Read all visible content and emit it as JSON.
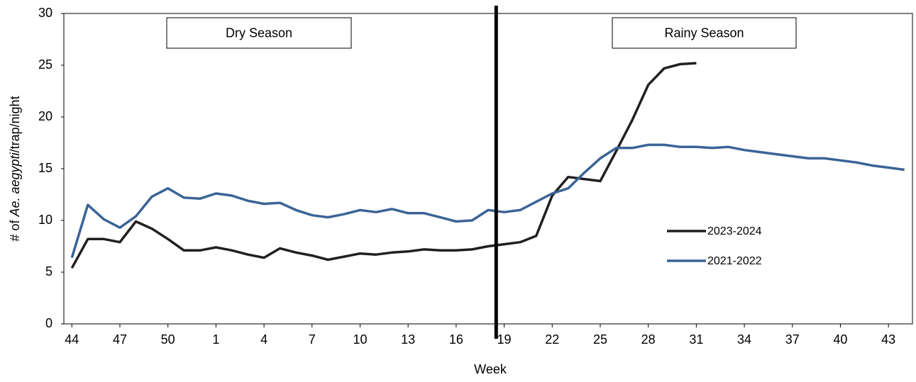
{
  "chart_data": {
    "type": "line",
    "xlabel": "Week",
    "ylabel_parts": [
      {
        "text": "# of "
      },
      {
        "text": "Ae. aegypti",
        "italic": true
      },
      {
        "text": "/trap/night"
      }
    ],
    "categories": [
      "44",
      null,
      null,
      "47",
      null,
      null,
      "50",
      null,
      null,
      "1",
      null,
      null,
      "4",
      null,
      null,
      "7",
      null,
      null,
      "10",
      null,
      null,
      "13",
      null,
      null,
      "16",
      null,
      null,
      "19",
      null,
      null,
      "22",
      null,
      null,
      "25",
      null,
      null,
      "28",
      null,
      null,
      "31",
      null,
      null,
      "34",
      null,
      null,
      "37",
      null,
      null,
      "40",
      null,
      null,
      "43",
      null
    ],
    "series": [
      {
        "name": "2023-2024",
        "color": "#231f20",
        "values": [
          5.4,
          8.2,
          8.2,
          7.9,
          9.9,
          9.2,
          8.2,
          7.1,
          7.1,
          7.4,
          7.1,
          6.7,
          6.4,
          7.3,
          6.9,
          6.6,
          6.2,
          6.5,
          6.8,
          6.7,
          6.9,
          7.0,
          7.2,
          7.1,
          7.1,
          7.2,
          7.5,
          7.7,
          7.9,
          8.5,
          12.4,
          14.2,
          14.0,
          13.8,
          16.7,
          19.7,
          23.1,
          24.7,
          25.1,
          25.2,
          null,
          null,
          null,
          null,
          null,
          null,
          null,
          null,
          null,
          null,
          null,
          null,
          null
        ]
      },
      {
        "name": "2021-2022",
        "color": "#3b6496",
        "values": [
          6.4,
          11.5,
          10.1,
          9.3,
          10.4,
          12.3,
          13.1,
          12.2,
          12.1,
          12.6,
          12.4,
          11.9,
          11.6,
          11.7,
          11.0,
          10.5,
          10.3,
          10.6,
          11.0,
          10.8,
          11.1,
          10.7,
          10.7,
          10.3,
          9.9,
          10.0,
          11.0,
          10.8,
          11.0,
          11.8,
          12.6,
          13.1,
          14.6,
          16.0,
          17.0,
          17.0,
          17.3,
          17.3,
          17.1,
          17.1,
          17.0,
          17.1,
          16.8,
          16.6,
          16.4,
          16.2,
          16.0,
          16.0,
          15.8,
          15.6,
          15.3,
          15.1,
          14.9
        ]
      }
    ],
    "ylim": [
      0,
      30
    ],
    "yticks": [
      0,
      5,
      10,
      15,
      20,
      25,
      30
    ],
    "grid": false,
    "legend": "right",
    "annotations": [
      {
        "text": "Dry Season"
      },
      {
        "text": "Rainy Season"
      }
    ]
  }
}
